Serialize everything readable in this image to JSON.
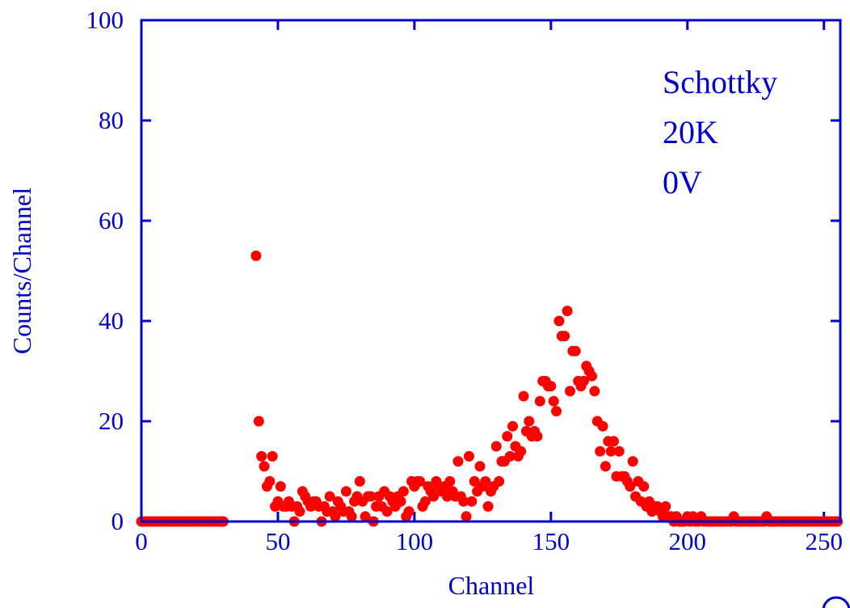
{
  "chart_data": {
    "type": "scatter",
    "x_label": "Channel",
    "y_label": "Counts/Channel",
    "annotations": [
      "Schottky",
      "20K",
      "0V"
    ],
    "color": "#ff0000",
    "axis_color": "#0000cc",
    "xlim": [
      0,
      256
    ],
    "ylim": [
      0,
      100
    ],
    "xticks": [
      0,
      50,
      100,
      150,
      200,
      250
    ],
    "yticks": [
      0,
      20,
      40,
      60,
      80,
      100
    ],
    "x": [
      0,
      1,
      2,
      3,
      4,
      5,
      6,
      7,
      8,
      9,
      10,
      11,
      12,
      13,
      14,
      15,
      16,
      17,
      18,
      19,
      20,
      21,
      22,
      23,
      24,
      25,
      26,
      27,
      28,
      29,
      30,
      31,
      32,
      33,
      34,
      35,
      36,
      37,
      38,
      39,
      40,
      41,
      42,
      43,
      44,
      45,
      46,
      47,
      48,
      49,
      50,
      51,
      52,
      53,
      54,
      55,
      56,
      57,
      58,
      59,
      60,
      61,
      62,
      63,
      64,
      65,
      66,
      67,
      68,
      69,
      70,
      71,
      72,
      73,
      74,
      75,
      76,
      77,
      78,
      79,
      80,
      81,
      82,
      83,
      84,
      85,
      86,
      87,
      88,
      89,
      90,
      91,
      92,
      93,
      94,
      95,
      96,
      97,
      98,
      99,
      100,
      101,
      102,
      103,
      104,
      105,
      106,
      107,
      108,
      109,
      110,
      111,
      112,
      113,
      114,
      115,
      116,
      117,
      118,
      119,
      120,
      121,
      122,
      123,
      124,
      125,
      126,
      127,
      128,
      129,
      130,
      131,
      132,
      133,
      134,
      135,
      136,
      137,
      138,
      139,
      140,
      141,
      142,
      143,
      144,
      145,
      146,
      147,
      148,
      149,
      150,
      151,
      152,
      153,
      154,
      155,
      156,
      157,
      158,
      159,
      160,
      161,
      162,
      163,
      164,
      165,
      166,
      167,
      168,
      169,
      170,
      171,
      172,
      173,
      174,
      175,
      176,
      177,
      178,
      179,
      180,
      181,
      182,
      183,
      184,
      185,
      186,
      187,
      188,
      189,
      190,
      191,
      192,
      193,
      194,
      195,
      196,
      197,
      198,
      199,
      200,
      201,
      202,
      203,
      204,
      205,
      206,
      207,
      208,
      209,
      210,
      211,
      212,
      213,
      214,
      215,
      216,
      217,
      218,
      219,
      220,
      221,
      222,
      223,
      224,
      225,
      226,
      227,
      228,
      229,
      230,
      231,
      232,
      233,
      234,
      235,
      236,
      237,
      238,
      239,
      240,
      241,
      242,
      243,
      244,
      245,
      246,
      247,
      248,
      249,
      250,
      251,
      252,
      253,
      254,
      255
    ],
    "values": [
      0,
      0,
      0,
      0,
      0,
      0,
      0,
      0,
      0,
      0,
      0,
      0,
      0,
      0,
      0,
      0,
      0,
      0,
      0,
      0,
      0,
      0,
      0,
      0,
      0,
      0,
      0,
      0,
      0,
      0,
      0,
      null,
      null,
      null,
      null,
      null,
      null,
      null,
      null,
      null,
      null,
      null,
      53,
      20,
      13,
      11,
      7,
      8,
      13,
      3,
      4,
      7,
      3,
      3,
      4,
      3,
      0,
      3,
      2,
      6,
      5,
      4,
      3,
      4,
      4,
      3,
      0,
      3,
      2,
      5,
      2,
      1,
      4,
      3,
      2,
      6,
      2,
      1,
      4,
      5,
      8,
      4,
      1,
      5,
      5,
      0,
      3,
      5,
      3,
      6,
      2,
      5,
      4,
      3,
      5,
      4,
      6,
      1,
      2,
      8,
      7,
      8,
      8,
      3,
      4,
      7,
      6,
      5,
      8,
      7,
      6,
      7,
      5,
      8,
      6,
      5,
      12,
      5,
      4,
      1,
      13,
      4,
      8,
      6,
      11,
      7,
      8,
      3,
      6,
      7,
      15,
      8,
      12,
      12,
      17,
      13,
      19,
      15,
      13,
      14,
      25,
      18,
      20,
      17,
      18,
      17,
      24,
      28,
      28,
      27,
      27,
      24,
      22,
      40,
      37,
      37,
      42,
      26,
      34,
      34,
      28,
      27,
      28,
      31,
      30,
      29,
      26,
      20,
      14,
      19,
      11,
      16,
      14,
      16,
      9,
      14,
      9,
      9,
      8,
      7,
      12,
      5,
      8,
      4,
      7,
      3,
      4,
      2,
      3,
      3,
      2,
      1,
      3,
      1,
      1,
      0,
      1,
      0,
      0,
      0,
      1,
      0,
      1,
      0,
      0,
      1,
      0,
      0,
      0,
      0,
      0,
      0,
      0,
      0,
      0,
      0,
      0,
      1,
      0,
      0,
      0,
      0,
      0,
      0,
      0,
      0,
      0,
      0,
      0,
      1,
      0,
      0,
      0,
      0,
      0,
      0,
      0,
      0,
      0,
      0,
      0,
      0,
      0,
      0,
      0,
      0,
      0,
      0,
      0,
      0,
      0,
      0,
      0,
      0,
      0,
      0
    ]
  }
}
